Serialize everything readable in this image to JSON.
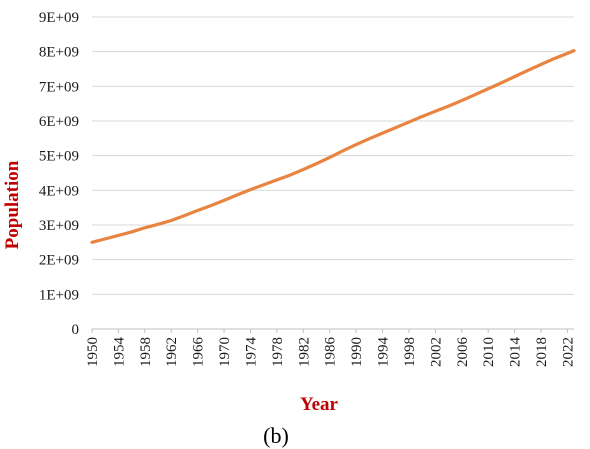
{
  "chart_data": {
    "type": "line",
    "xlabel": "Year",
    "ylabel": "Population",
    "caption": "(b)",
    "xlim": [
      1950,
      2023
    ],
    "ylim": [
      0,
      9000000000
    ],
    "y_ticks": [
      {
        "value": 0,
        "label": "0"
      },
      {
        "value": 1000000000,
        "label": "1E+09"
      },
      {
        "value": 2000000000,
        "label": "2E+09"
      },
      {
        "value": 3000000000,
        "label": "3E+09"
      },
      {
        "value": 4000000000,
        "label": "4E+09"
      },
      {
        "value": 5000000000,
        "label": "5E+09"
      },
      {
        "value": 6000000000,
        "label": "6E+09"
      },
      {
        "value": 7000000000,
        "label": "7E+09"
      },
      {
        "value": 8000000000,
        "label": "8E+09"
      },
      {
        "value": 9000000000,
        "label": "9E+09"
      }
    ],
    "x_tick_labels": [
      "1950",
      "1954",
      "1958",
      "1962",
      "1966",
      "1970",
      "1974",
      "1978",
      "1982",
      "1986",
      "1990",
      "1994",
      "1998",
      "2002",
      "2006",
      "2010",
      "2014",
      "2018",
      "2022"
    ],
    "grid": "horizontal",
    "series": [
      {
        "color": "#E8843F",
        "x": [
          1950,
          1952,
          1954,
          1956,
          1958,
          1960,
          1962,
          1964,
          1966,
          1968,
          1970,
          1972,
          1974,
          1976,
          1978,
          1980,
          1982,
          1984,
          1986,
          1988,
          1990,
          1992,
          1994,
          1996,
          1998,
          2000,
          2002,
          2004,
          2006,
          2008,
          2010,
          2012,
          2014,
          2016,
          2018,
          2020,
          2022,
          2023
        ],
        "y": [
          2500000000,
          2600000000,
          2700000000,
          2800000000,
          2920000000,
          3020000000,
          3130000000,
          3270000000,
          3420000000,
          3560000000,
          3710000000,
          3870000000,
          4020000000,
          4160000000,
          4300000000,
          4440000000,
          4600000000,
          4770000000,
          4950000000,
          5140000000,
          5320000000,
          5490000000,
          5650000000,
          5810000000,
          5970000000,
          6130000000,
          6280000000,
          6430000000,
          6590000000,
          6760000000,
          6930000000,
          7100000000,
          7280000000,
          7460000000,
          7630000000,
          7800000000,
          7950000000,
          8030000000
        ]
      }
    ]
  },
  "colors": {
    "axis_title": "#C00000",
    "grid": "#D9D9D9",
    "axis_line": "#BFBFBF",
    "tick_text": "#1A1A1A"
  }
}
